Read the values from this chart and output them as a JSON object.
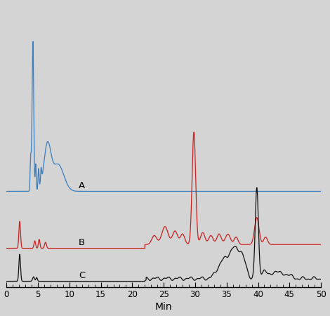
{
  "background_color": "#d4d4d4",
  "plot_bg_color": "#d4d4d4",
  "xlabel": "Min",
  "xlabel_fontsize": 10,
  "tick_fontsize": 8.5,
  "xlim": [
    0,
    50
  ],
  "label_A": "A",
  "label_B": "B",
  "label_C": "C",
  "color_A": "#3a7fc0",
  "color_B": "#cc2020",
  "color_C": "#111111",
  "linewidth": 0.9
}
